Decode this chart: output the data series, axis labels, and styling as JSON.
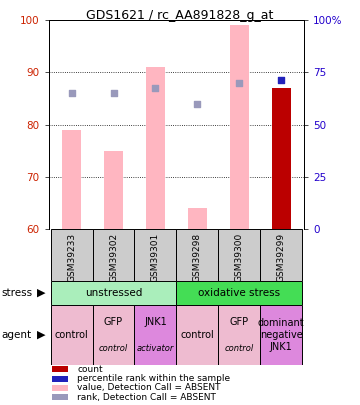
{
  "title": "GDS1621 / rc_AA891828_g_at",
  "samples": [
    "GSM39233",
    "GSM39302",
    "GSM39301",
    "GSM39298",
    "GSM39300",
    "GSM39299"
  ],
  "bar_values_pink": [
    79,
    75,
    91,
    64,
    99,
    87
  ],
  "bar_values_red": [
    0,
    0,
    0,
    0,
    0,
    87
  ],
  "rank_dots_y_absent": [
    86,
    86,
    87,
    84,
    88,
    null
  ],
  "rank_dots_y_blue": [
    null,
    null,
    87,
    null,
    88,
    88
  ],
  "blue_dot_y": [
    null,
    null,
    null,
    null,
    null,
    88.5
  ],
  "ylim": [
    60,
    100
  ],
  "y2lim": [
    0,
    100
  ],
  "yticks_left": [
    60,
    70,
    80,
    90,
    100
  ],
  "yticks_right": [
    0,
    25,
    50,
    75,
    100
  ],
  "bar_width": 0.45,
  "bar_color_pink": "#FFB6C1",
  "bar_color_red": "#BB0000",
  "dot_color_absent_rank": "#9999BB",
  "dot_color_blue": "#2222BB",
  "label_color_left": "#CC2200",
  "label_color_right": "#2200CC",
  "bg_sample_color": "#CCCCCC",
  "stress_light_green": "#AAEEBB",
  "stress_dark_green": "#44DD55",
  "agent_pink": "#EEBBD0",
  "agent_purple": "#DD88DD",
  "legend_items": [
    {
      "color": "#BB0000",
      "label": "count"
    },
    {
      "color": "#2222BB",
      "label": "percentile rank within the sample"
    },
    {
      "color": "#FFB6C1",
      "label": "value, Detection Call = ABSENT"
    },
    {
      "color": "#9999BB",
      "label": "rank, Detection Call = ABSENT"
    }
  ]
}
